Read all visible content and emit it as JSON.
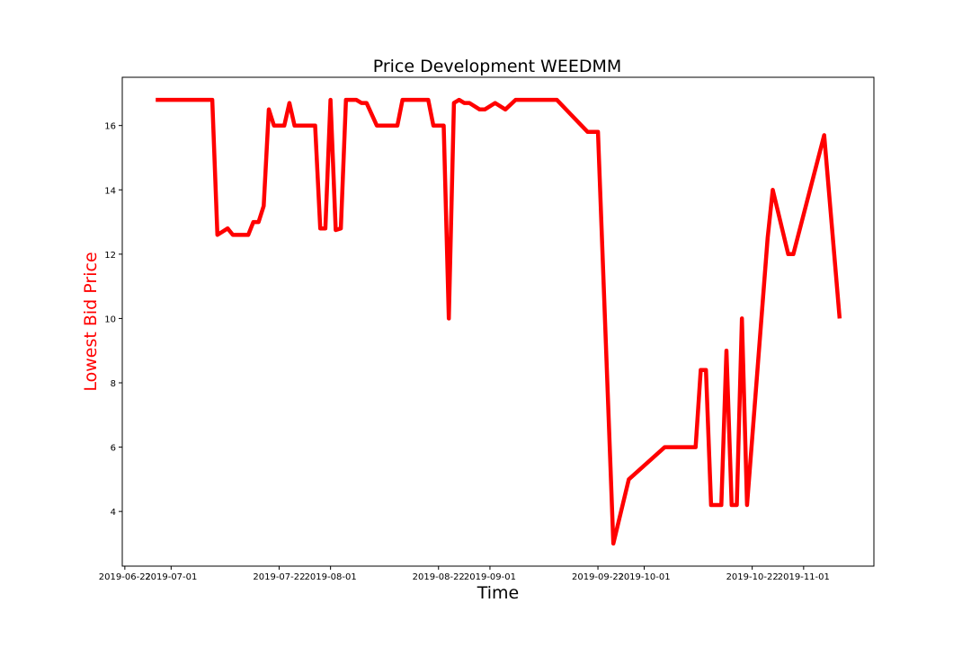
{
  "chart_data": {
    "type": "line",
    "title": "Price Development WEEDMM",
    "xlabel": "Time",
    "ylabel": "Lowest Bid Price",
    "ylabel_color": "#ff0000",
    "line_color": "#ff0000",
    "grid": false,
    "legend": "none",
    "xlim": [
      "2019-06-21T12:00",
      "2019-11-14T16:00"
    ],
    "ylim": [
      2.3,
      17.5
    ],
    "xticks": [
      "2019-06-22",
      "2019-07-01",
      "2019-07-22",
      "2019-08-01",
      "2019-08-22",
      "2019-09-01",
      "2019-09-22",
      "2019-10-01",
      "2019-10-22",
      "2019-11-01"
    ],
    "yticks": [
      4,
      6,
      8,
      10,
      12,
      14,
      16
    ],
    "series": [
      {
        "name": "Lowest Bid Price",
        "x": [
          "2019-06-28",
          "2019-07-09",
          "2019-07-10",
          "2019-07-12",
          "2019-07-13",
          "2019-07-16",
          "2019-07-17",
          "2019-07-18",
          "2019-07-19",
          "2019-07-20",
          "2019-07-21",
          "2019-07-23",
          "2019-07-24",
          "2019-07-25",
          "2019-07-29",
          "2019-07-30",
          "2019-07-31",
          "2019-08-01",
          "2019-08-02",
          "2019-08-03",
          "2019-08-04",
          "2019-08-06",
          "2019-08-07",
          "2019-08-08",
          "2019-08-10",
          "2019-08-14",
          "2019-08-15",
          "2019-08-20",
          "2019-08-21",
          "2019-08-23",
          "2019-08-24",
          "2019-08-25",
          "2019-08-26",
          "2019-08-27",
          "2019-08-28",
          "2019-08-30",
          "2019-08-31",
          "2019-09-02",
          "2019-09-04",
          "2019-09-06",
          "2019-09-14",
          "2019-09-20",
          "2019-09-22",
          "2019-09-25",
          "2019-09-28",
          "2019-10-05",
          "2019-10-11",
          "2019-10-12",
          "2019-10-13",
          "2019-10-14",
          "2019-10-16",
          "2019-10-17",
          "2019-10-18",
          "2019-10-19",
          "2019-10-20",
          "2019-10-21",
          "2019-10-25",
          "2019-10-26",
          "2019-10-29",
          "2019-10-30",
          "2019-11-05",
          "2019-11-08"
        ],
        "y": [
          16.8,
          16.8,
          12.6,
          12.8,
          12.6,
          12.6,
          13.0,
          13.0,
          13.5,
          16.5,
          16.0,
          16.0,
          16.7,
          16.0,
          16.0,
          12.8,
          12.8,
          16.8,
          12.75,
          12.8,
          16.8,
          16.8,
          16.7,
          16.7,
          16.0,
          16.0,
          16.8,
          16.8,
          16.0,
          16.0,
          10.0,
          16.7,
          16.8,
          16.7,
          16.7,
          16.5,
          16.5,
          16.7,
          16.5,
          16.8,
          16.8,
          15.8,
          15.8,
          3.0,
          5.0,
          6.0,
          6.0,
          8.4,
          8.4,
          4.2,
          4.2,
          9.0,
          4.2,
          4.2,
          10.0,
          4.2,
          12.5,
          14.0,
          12.0,
          12.0,
          15.7,
          10.0
        ]
      }
    ]
  }
}
